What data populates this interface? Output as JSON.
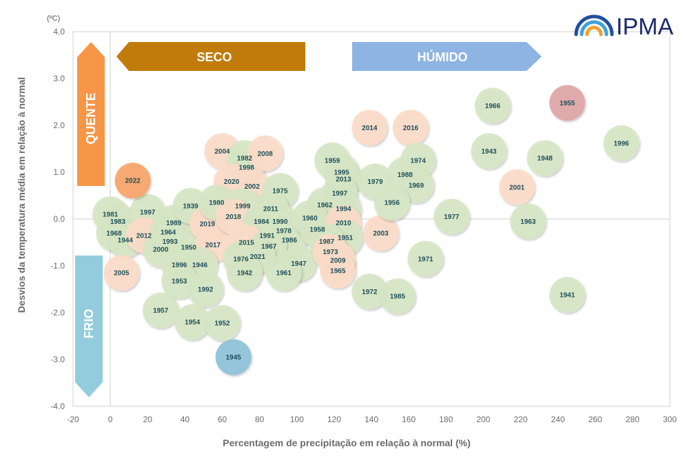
{
  "brand": {
    "logo_text": "IPMA",
    "logo_colors": [
      "#1f4fa0",
      "#3fa0dd",
      "#f0a030"
    ]
  },
  "annotations": {
    "unit": "(ºC)",
    "dry": "SECO",
    "wet": "HÚMIDO",
    "hot": "QUENTE",
    "cold": "FRIO"
  },
  "colors": {
    "dry_arrow": "#c07b0a",
    "wet_arrow": "#8eb4e3",
    "hot_arrow": "#f79646",
    "cold_arrow": "#93cddd",
    "bubble_green": "#d6e6c5",
    "bubble_peach": "#fbdcc8",
    "bubble_2022": "#f7a66a",
    "bubble_1955": "#e0a7a7",
    "bubble_1945": "#8fc3d9"
  },
  "chart_data": {
    "type": "scatter",
    "xlabel": "Percentagem de precipitação em relação à normal (%)",
    "ylabel": "Desvios da temperatura média em relação à normal",
    "xlim": [
      -20,
      300
    ],
    "ylim": [
      -4.0,
      4.0
    ],
    "xticks": [
      "-20",
      "0",
      "20",
      "40",
      "60",
      "80",
      "100",
      "120",
      "140",
      "160",
      "180",
      "200",
      "220",
      "240",
      "260",
      "280",
      "300"
    ],
    "yticks": [
      "4.0",
      "3.0",
      "2.0",
      "1.0",
      "0.0",
      "-1.0",
      "-2.0",
      "-3.0",
      "-4.0"
    ],
    "grid": "zero lines only",
    "points": [
      {
        "year": "1981",
        "x": 0,
        "y": 0.1,
        "color": "green"
      },
      {
        "year": "1983",
        "x": 4,
        "y": -0.05,
        "color": "green"
      },
      {
        "year": "1968",
        "x": 2,
        "y": -0.3,
        "color": "green"
      },
      {
        "year": "1944",
        "x": 8,
        "y": -0.45,
        "color": "green"
      },
      {
        "year": "1997",
        "x": 20,
        "y": 0.15,
        "color": "green"
      },
      {
        "year": "2012",
        "x": 18,
        "y": -0.35,
        "color": "peach"
      },
      {
        "year": "1964",
        "x": 31,
        "y": -0.28,
        "color": "green"
      },
      {
        "year": "1989",
        "x": 34,
        "y": -0.08,
        "color": "green"
      },
      {
        "year": "1993",
        "x": 32,
        "y": -0.48,
        "color": "green"
      },
      {
        "year": "2000",
        "x": 27,
        "y": -0.65,
        "color": "green"
      },
      {
        "year": "1950",
        "x": 42,
        "y": -0.6,
        "color": "green"
      },
      {
        "year": "1939",
        "x": 43,
        "y": 0.28,
        "color": "green"
      },
      {
        "year": "2019",
        "x": 52,
        "y": -0.1,
        "color": "peach"
      },
      {
        "year": "2017",
        "x": 55,
        "y": -0.55,
        "color": "peach"
      },
      {
        "year": "1996",
        "x": 37,
        "y": -0.98,
        "color": "green"
      },
      {
        "year": "1946",
        "x": 48,
        "y": -0.98,
        "color": "green"
      },
      {
        "year": "1953",
        "x": 37,
        "y": -1.32,
        "color": "green"
      },
      {
        "year": "1992",
        "x": 51,
        "y": -1.5,
        "color": "green"
      },
      {
        "year": "1957",
        "x": 27,
        "y": -1.95,
        "color": "green"
      },
      {
        "year": "1954",
        "x": 44,
        "y": -2.2,
        "color": "green"
      },
      {
        "year": "1952",
        "x": 60,
        "y": -2.22,
        "color": "green"
      },
      {
        "year": "2005",
        "x": 6,
        "y": -1.15,
        "color": "peach"
      },
      {
        "year": "2022",
        "x": 12,
        "y": 0.82,
        "color": "orange"
      },
      {
        "year": "2004",
        "x": 60,
        "y": 1.45,
        "color": "peach"
      },
      {
        "year": "1982",
        "x": 72,
        "y": 1.3,
        "color": "green"
      },
      {
        "year": "1998",
        "x": 73,
        "y": 1.1,
        "color": "green"
      },
      {
        "year": "2008",
        "x": 83,
        "y": 1.4,
        "color": "peach"
      },
      {
        "year": "2020",
        "x": 65,
        "y": 0.8,
        "color": "peach"
      },
      {
        "year": "2002",
        "x": 76,
        "y": 0.7,
        "color": "peach"
      },
      {
        "year": "1975",
        "x": 91,
        "y": 0.6,
        "color": "green"
      },
      {
        "year": "1980",
        "x": 57,
        "y": 0.35,
        "color": "green"
      },
      {
        "year": "1999",
        "x": 71,
        "y": 0.28,
        "color": "green"
      },
      {
        "year": "2011",
        "x": 86,
        "y": 0.22,
        "color": "green"
      },
      {
        "year": "2018",
        "x": 66,
        "y": 0.05,
        "color": "peach"
      },
      {
        "year": "1984",
        "x": 81,
        "y": -0.05,
        "color": "green"
      },
      {
        "year": "1990",
        "x": 91,
        "y": -0.05,
        "color": "green"
      },
      {
        "year": "1978",
        "x": 93,
        "y": -0.25,
        "color": "green"
      },
      {
        "year": "1991",
        "x": 84,
        "y": -0.35,
        "color": "green"
      },
      {
        "year": "1986",
        "x": 96,
        "y": -0.45,
        "color": "green"
      },
      {
        "year": "2015",
        "x": 73,
        "y": -0.5,
        "color": "peach"
      },
      {
        "year": "1967",
        "x": 85,
        "y": -0.58,
        "color": "green"
      },
      {
        "year": "1976",
        "x": 70,
        "y": -0.85,
        "color": "green"
      },
      {
        "year": "2021",
        "x": 79,
        "y": -0.8,
        "color": "green"
      },
      {
        "year": "1942",
        "x": 72,
        "y": -1.15,
        "color": "green"
      },
      {
        "year": "1947",
        "x": 101,
        "y": -0.95,
        "color": "green"
      },
      {
        "year": "1961",
        "x": 93,
        "y": -1.15,
        "color": "green"
      },
      {
        "year": "1945",
        "x": 66,
        "y": -2.95,
        "color": "blue"
      },
      {
        "year": "1959",
        "x": 119,
        "y": 1.25,
        "color": "green"
      },
      {
        "year": "1995",
        "x": 124,
        "y": 1.0,
        "color": "green"
      },
      {
        "year": "2013",
        "x": 125,
        "y": 0.85,
        "color": "green"
      },
      {
        "year": "1997",
        "x": 123,
        "y": 0.55,
        "color": "green"
      },
      {
        "year": "1962",
        "x": 115,
        "y": 0.3,
        "color": "green"
      },
      {
        "year": "1994",
        "x": 125,
        "y": 0.22,
        "color": "green"
      },
      {
        "year": "1960",
        "x": 107,
        "y": 0.02,
        "color": "green"
      },
      {
        "year": "1958",
        "x": 111,
        "y": -0.22,
        "color": "green"
      },
      {
        "year": "2010",
        "x": 125,
        "y": -0.08,
        "color": "peach"
      },
      {
        "year": "1951",
        "x": 126,
        "y": -0.4,
        "color": "green"
      },
      {
        "year": "1987",
        "x": 116,
        "y": -0.48,
        "color": "green"
      },
      {
        "year": "1973",
        "x": 118,
        "y": -0.7,
        "color": "peach"
      },
      {
        "year": "2009",
        "x": 122,
        "y": -0.88,
        "color": "peach"
      },
      {
        "year": "1965",
        "x": 122,
        "y": -1.1,
        "color": "peach"
      },
      {
        "year": "2003",
        "x": 145,
        "y": -0.3,
        "color": "peach"
      },
      {
        "year": "2014",
        "x": 139,
        "y": 1.95,
        "color": "peach"
      },
      {
        "year": "2016",
        "x": 161,
        "y": 1.95,
        "color": "peach"
      },
      {
        "year": "1979",
        "x": 142,
        "y": 0.8,
        "color": "green"
      },
      {
        "year": "1988",
        "x": 158,
        "y": 0.95,
        "color": "green"
      },
      {
        "year": "1974",
        "x": 165,
        "y": 1.25,
        "color": "green"
      },
      {
        "year": "1969",
        "x": 164,
        "y": 0.72,
        "color": "green"
      },
      {
        "year": "1956",
        "x": 151,
        "y": 0.35,
        "color": "green"
      },
      {
        "year": "1977",
        "x": 183,
        "y": 0.05,
        "color": "green"
      },
      {
        "year": "1971",
        "x": 169,
        "y": -0.85,
        "color": "green"
      },
      {
        "year": "1972",
        "x": 139,
        "y": -1.55,
        "color": "green"
      },
      {
        "year": "1985",
        "x": 154,
        "y": -1.65,
        "color": "green"
      },
      {
        "year": "1966",
        "x": 205,
        "y": 2.42,
        "color": "green"
      },
      {
        "year": "1943",
        "x": 203,
        "y": 1.45,
        "color": "green"
      },
      {
        "year": "2001",
        "x": 218,
        "y": 0.68,
        "color": "peach"
      },
      {
        "year": "1948",
        "x": 233,
        "y": 1.3,
        "color": "green"
      },
      {
        "year": "1955",
        "x": 245,
        "y": 2.48,
        "color": "red"
      },
      {
        "year": "1963",
        "x": 224,
        "y": -0.05,
        "color": "green"
      },
      {
        "year": "1941",
        "x": 245,
        "y": -1.62,
        "color": "green"
      },
      {
        "year": "1996",
        "x": 274,
        "y": 1.62,
        "color": "green"
      }
    ]
  }
}
